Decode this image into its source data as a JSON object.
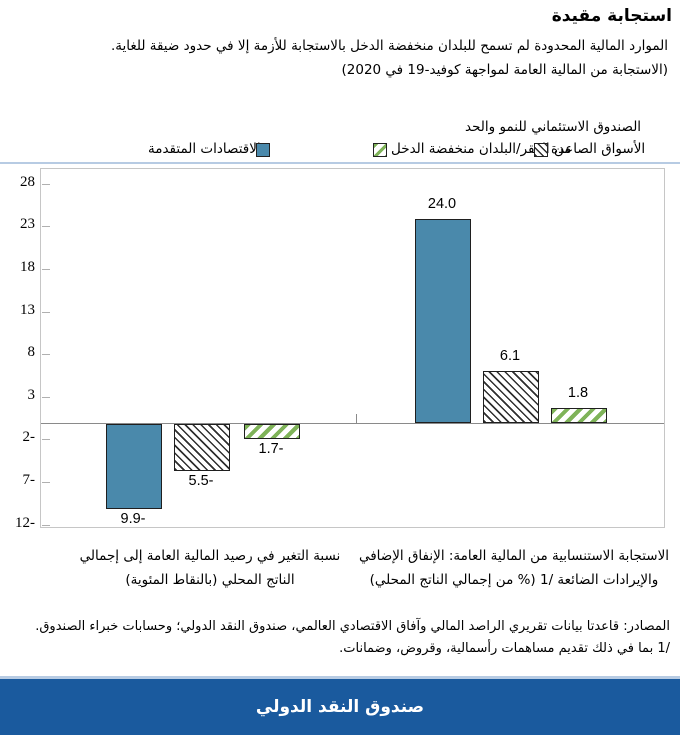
{
  "header": {
    "title": "استجابة مقيدة",
    "subtitle": "الموارد المالية المحدودة لم تسمح للبلدان منخفضة الدخل بالاستجابة للأزمة إلا في حدود ضيقة للغاية.",
    "subtitle2": "(الاستجابة من المالية العامة لمواجهة كوفيد-19 في 2020)"
  },
  "legend": {
    "advanced": {
      "label": "الاقتصادات المتقدمة",
      "color": "#4a89ab",
      "pattern": "solid"
    },
    "emerging": {
      "label": "الأسواق الصاعدة",
      "color": "#2f2f2f",
      "pattern": "diagonal-hatch-dark"
    },
    "prgt": {
      "label_line1": "الصندوق الاستئماني للنمو والحد",
      "label_line2": "من الفقر/البلدان منخفضة الدخل",
      "color": "#7fb359",
      "pattern": "diagonal-hatch-green"
    }
  },
  "chart_data": {
    "type": "bar",
    "title": "استجابة مقيدة",
    "subtitle": "(الاستجابة من المالية العامة لمواجهة كوفيد-19 في 2020)",
    "ylim": [
      -12.15,
      29.85
    ],
    "grid": false,
    "legend_position": "top",
    "yticks": {
      "values": [
        28,
        23,
        18,
        13,
        8,
        3,
        -2,
        -7,
        -12
      ],
      "labels": [
        "28",
        "23",
        "18",
        "13",
        "8",
        "3",
        "2-",
        "7-",
        "12-"
      ]
    },
    "series_names": [
      "الاقتصادات المتقدمة",
      "الأسواق الصاعدة",
      "الصندوق الاستئماني للنمو والحد من الفقر/البلدان منخفضة الدخل"
    ],
    "groups": [
      {
        "label_line1": "نسبة التغير في رصيد المالية العامة إلى إجمالي",
        "label_line2": "الناتج المحلي (بالنقاط المئوية)",
        "values": [
          -9.9,
          -5.5,
          -1.7
        ],
        "value_labels": [
          "9.9-",
          "5.5-",
          "1.7-"
        ]
      },
      {
        "label_line1": "الاستجابة الاستنسابية من المالية العامة: الإنفاق الإضافي",
        "label_line2": "والإيرادات الضائعة /1 (% من إجمالي الناتج المحلي)",
        "values": [
          24.0,
          6.1,
          1.8
        ],
        "value_labels": [
          "24.0",
          "6.1",
          "1.8"
        ]
      }
    ]
  },
  "notes": {
    "source": "المصادر: قاعدتا بيانات تقريري الراصد المالي وآفاق الاقتصادي العالمي، صندوق النقد الدولي؛ وحسابات خبراء الصندوق.",
    "footnote": "/1 بما في ذلك تقديم مساهمات رأسمالية، وقروض، وضمانات."
  },
  "footer": {
    "brand": "صندوق النقد الدولي"
  },
  "colors": {
    "advanced_fill": "#4a89ab",
    "hatch_dark": "#2f2f2f",
    "hatch_green": "#7fb359",
    "footer_bar": "#1a5a9e",
    "separator": "#b7cbe3",
    "plot_border": "#c6c6c6",
    "zero_line": "#8a8a8a"
  }
}
